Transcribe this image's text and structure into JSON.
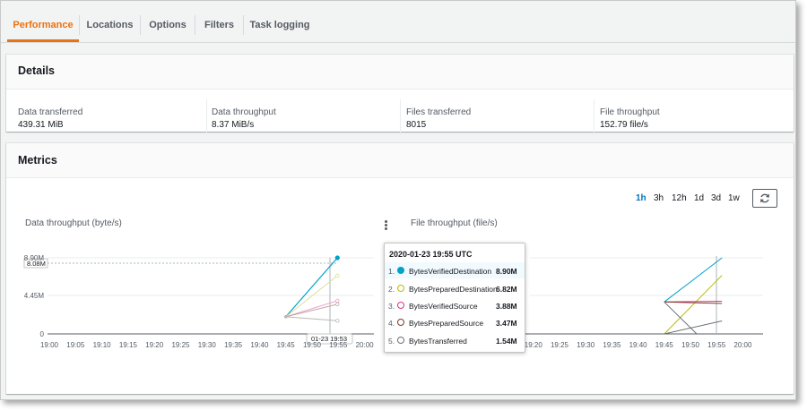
{
  "tabs": [
    {
      "label": "Performance",
      "active": true
    },
    {
      "label": "Locations"
    },
    {
      "label": "Options"
    },
    {
      "label": "Filters"
    },
    {
      "label": "Task logging"
    }
  ],
  "details": {
    "title": "Details",
    "items": [
      {
        "label": "Data transferred",
        "value": "439.31 MiB"
      },
      {
        "label": "Data throughput",
        "value": "8.37 MiB/s"
      },
      {
        "label": "Files transferred",
        "value": "8015"
      },
      {
        "label": "File throughput",
        "value": "152.79 file/s"
      }
    ]
  },
  "metrics": {
    "title": "Metrics",
    "ranges": [
      "1h",
      "3h",
      "12h",
      "1d",
      "3d",
      "1w"
    ],
    "selected_range": "1h",
    "refresh_icon": "refresh-icon",
    "menu_icon": "vertical-ellipsis-icon"
  },
  "chart_data": [
    {
      "type": "line",
      "title": "Data throughput (byte/s)",
      "x": [
        "19:45",
        "19:55"
      ],
      "ylim": [
        0,
        8900000
      ],
      "yticks": [
        "0",
        "4.45M",
        "8.90M"
      ],
      "y_marker_label": "8.08M",
      "x_ticks": [
        "19:00",
        "19:05",
        "19:10",
        "19:15",
        "19:20",
        "19:25",
        "19:30",
        "19:35",
        "19:40",
        "19:45",
        "19:50",
        "19:55",
        "20:00"
      ],
      "crosshair_label": "01-23 19:53",
      "series": [
        {
          "name": "BytesVerifiedDestination",
          "color": "#00a1c9",
          "values": [
            2000000,
            8900000
          ]
        },
        {
          "name": "BytesPreparedDestination",
          "color": "#dede9a",
          "values": [
            2000000,
            6820000
          ]
        },
        {
          "name": "BytesVerifiedSource",
          "color": "#e7a0cf",
          "values": [
            2000000,
            3880000
          ]
        },
        {
          "name": "BytesPreparedSource",
          "color": "#c7a8a0",
          "values": [
            2000000,
            3470000
          ]
        },
        {
          "name": "BytesTransferred",
          "color": "#b8b8b8",
          "values": [
            2000000,
            1540000
          ]
        }
      ]
    },
    {
      "type": "line",
      "title": "File throughput (file/s)",
      "x": [
        "19:45",
        "19:55"
      ],
      "x_ticks": [
        "19:00",
        "19:05",
        "19:10",
        "19:15",
        "19:20",
        "19:25",
        "19:30",
        "19:35",
        "19:40",
        "19:45",
        "19:50",
        "19:55",
        "20:00"
      ],
      "series": [
        {
          "color": "#00a1c9",
          "values": [
            0.42,
            1.0
          ]
        },
        {
          "color": "#b9bb00",
          "values": [
            0.0,
            0.77
          ]
        },
        {
          "color": "#d6338a",
          "values": [
            0.42,
            0.43
          ]
        },
        {
          "color": "#7d3b2c",
          "values": [
            0.42,
            0.4
          ]
        },
        {
          "color": "#687078",
          "values": [
            0.0,
            0.17
          ]
        }
      ]
    }
  ],
  "tooltip": {
    "title": "2020-01-23 19:55 UTC",
    "rows": [
      {
        "index": "1.",
        "name": "BytesVerifiedDestination",
        "value": "8.90M",
        "color": "#00a1c9",
        "filled": true
      },
      {
        "index": "2.",
        "name": "BytesPreparedDestination",
        "value": "6.82M",
        "color": "#b9bb00",
        "filled": false
      },
      {
        "index": "3.",
        "name": "BytesVerifiedSource",
        "value": "3.88M",
        "color": "#d6338a",
        "filled": false
      },
      {
        "index": "4.",
        "name": "BytesPreparedSource",
        "value": "3.47M",
        "color": "#7d3b2c",
        "filled": false
      },
      {
        "index": "5.",
        "name": "BytesTransferred",
        "value": "1.54M",
        "color": "#687078",
        "filled": false
      }
    ]
  }
}
